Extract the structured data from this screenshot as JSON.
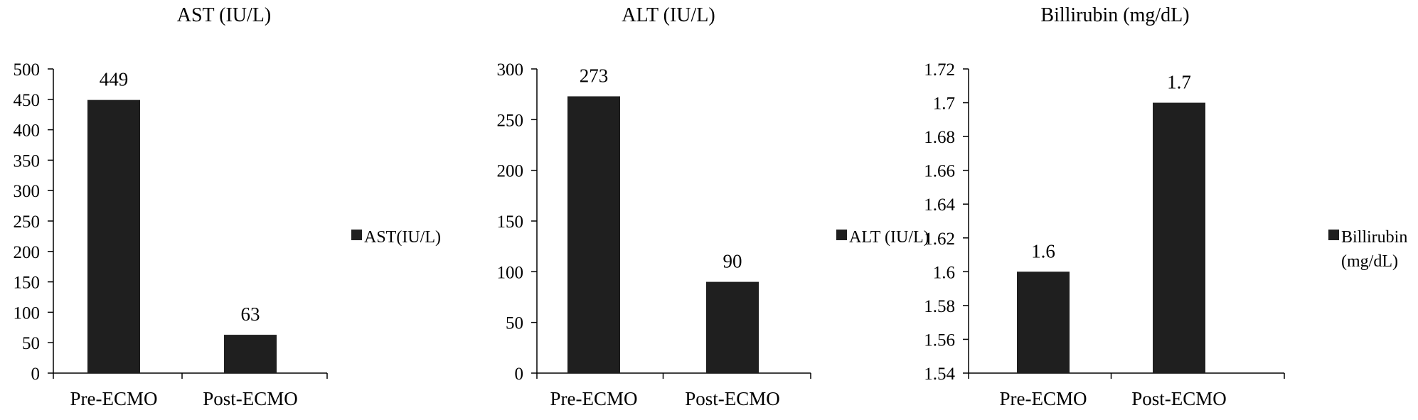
{
  "chart_data": [
    {
      "type": "bar",
      "title": "AST (IU/L)",
      "categories": [
        "Pre-ECMO",
        "Post-ECMO"
      ],
      "series": [
        {
          "name": "AST(IU/L)",
          "values": [
            449,
            63
          ]
        }
      ],
      "data_labels": [
        "449",
        "63"
      ],
      "yticks": [
        "0",
        "50",
        "100",
        "150",
        "200",
        "250",
        "300",
        "350",
        "400",
        "450",
        "500"
      ],
      "ylim": [
        0,
        500
      ],
      "legend_lines": [
        "AST(IU/L)"
      ],
      "legend_position": "right",
      "grid": false,
      "bar_color": "#1f1f1f"
    },
    {
      "type": "bar",
      "title": "ALT (IU/L)",
      "categories": [
        "Pre-ECMO",
        "Post-ECMO"
      ],
      "series": [
        {
          "name": "ALT (IU/L)",
          "values": [
            273,
            90
          ]
        }
      ],
      "data_labels": [
        "273",
        "90"
      ],
      "yticks": [
        "0",
        "50",
        "100",
        "150",
        "200",
        "250",
        "300"
      ],
      "ylim": [
        0,
        300
      ],
      "legend_lines": [
        "ALT (IU/L)"
      ],
      "legend_position": "right",
      "grid": false,
      "bar_color": "#1f1f1f"
    },
    {
      "type": "bar",
      "title": "Billirubin (mg/dL)",
      "categories": [
        "Pre-ECMO",
        "Post-ECMO"
      ],
      "series": [
        {
          "name": "Billirubin (mg/dL)",
          "values": [
            1.6,
            1.7
          ]
        }
      ],
      "data_labels": [
        "1.6",
        "1.7"
      ],
      "yticks": [
        "1.54",
        "1.56",
        "1.58",
        "1.6",
        "1.62",
        "1.64",
        "1.66",
        "1.68",
        "1.7",
        "1.72"
      ],
      "ylim": [
        1.54,
        1.72
      ],
      "legend_lines": [
        "Billirubin",
        "(mg/dL)"
      ],
      "legend_position": "right",
      "grid": false,
      "bar_color": "#1f1f1f"
    }
  ]
}
